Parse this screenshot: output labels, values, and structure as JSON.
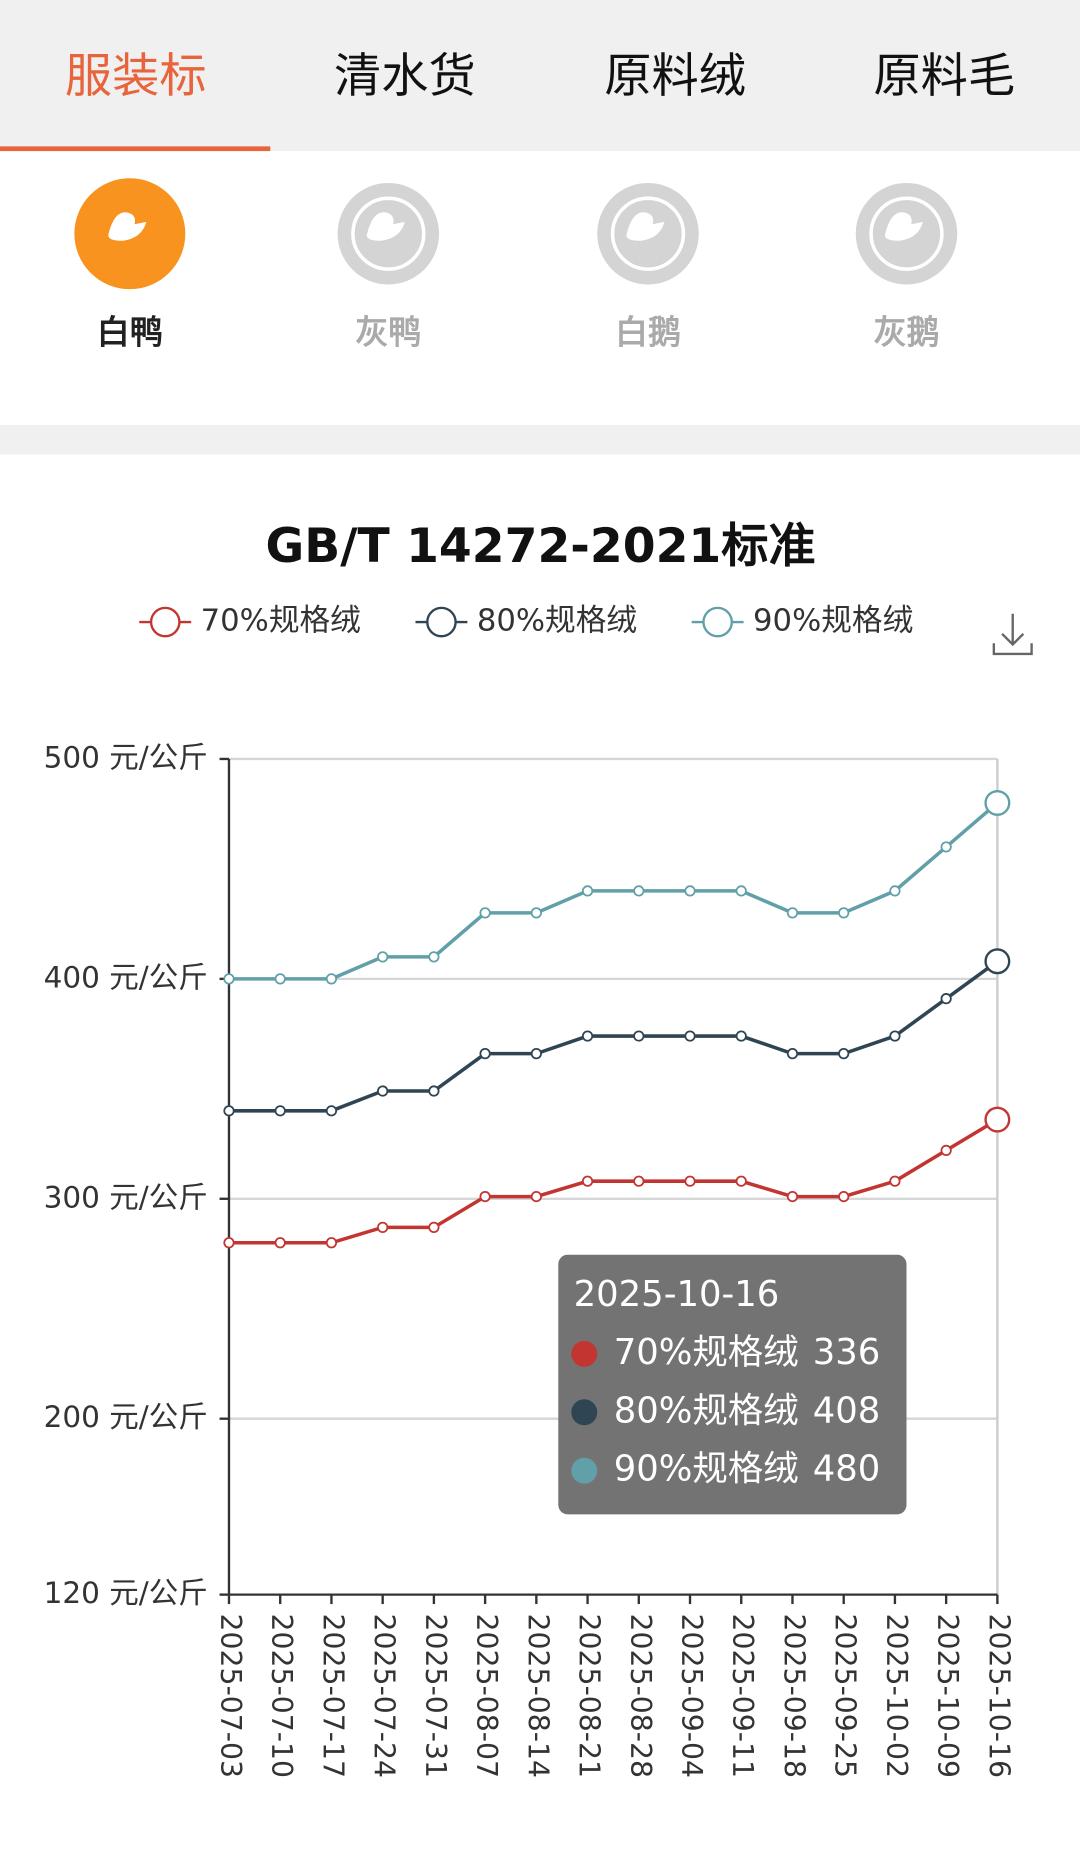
{
  "tabs": [
    "服装标",
    "清水货",
    "原料绒",
    "原料毛"
  ],
  "sub_tabs": [
    "白鸭",
    "灰鸭",
    "白鹅",
    "灰鹅"
  ],
  "chart_data": {
    "type": "line",
    "title": "GB/T 14272-2021标准",
    "x": [
      "2025-07-03",
      "2025-07-10",
      "2025-07-17",
      "2025-07-24",
      "2025-07-31",
      "2025-08-07",
      "2025-08-14",
      "2025-08-21",
      "2025-08-28",
      "2025-09-04",
      "2025-09-11",
      "2025-09-18",
      "2025-09-25",
      "2025-10-02",
      "2025-10-09",
      "2025-10-16"
    ],
    "series": [
      {
        "name": "70%规格绒",
        "color": "#c23531",
        "values": [
          280,
          280,
          280,
          287,
          287,
          301,
          301,
          308,
          308,
          308,
          308,
          301,
          301,
          308,
          322,
          336
        ]
      },
      {
        "name": "80%规格绒",
        "color": "#2f4554",
        "values": [
          340,
          340,
          340,
          349,
          349,
          366,
          366,
          374,
          374,
          374,
          374,
          366,
          366,
          374,
          391,
          408
        ]
      },
      {
        "name": "90%规格绒",
        "color": "#61a0a8",
        "values": [
          400,
          400,
          400,
          410,
          410,
          430,
          430,
          440,
          440,
          440,
          440,
          430,
          430,
          440,
          460,
          480
        ]
      }
    ],
    "ylim": [
      120,
      500
    ],
    "yticks": [
      {
        "value": 120,
        "label": "120 元/公斤"
      },
      {
        "value": 200,
        "label": "200 元/公斤"
      },
      {
        "value": 300,
        "label": "300 元/公斤"
      },
      {
        "value": 400,
        "label": "400 元/公斤"
      },
      {
        "value": 500,
        "label": "500 元/公斤"
      }
    ],
    "grid": true,
    "tooltip_index": 15
  }
}
